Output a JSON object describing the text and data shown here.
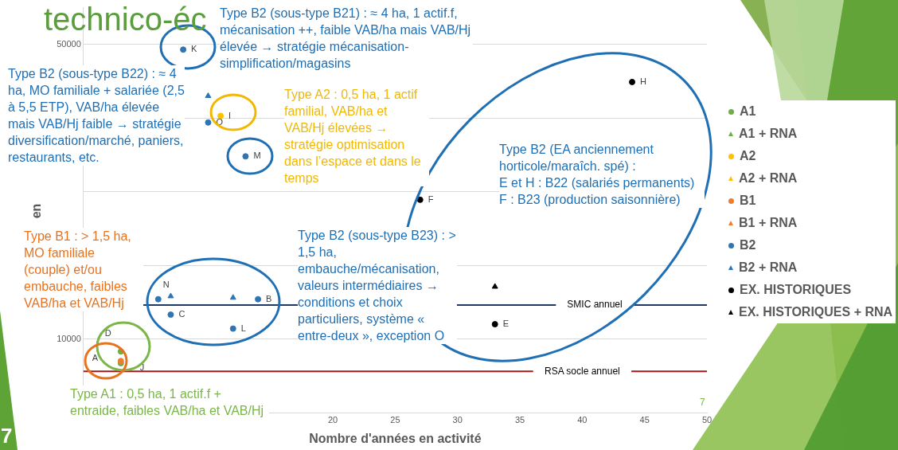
{
  "chart_data": {
    "type": "scatter",
    "title": "technico-éc",
    "xlabel": "Nombre d'années en activité",
    "ylabel": "en",
    "xlim": [
      0,
      50
    ],
    "xticks": [
      20,
      25,
      30,
      35,
      40,
      45,
      50
    ],
    "ylim": [
      0,
      55000
    ],
    "yticks": [
      10000,
      {
        "value": 20000,
        "label": null
      },
      {
        "value": 30000,
        "label": null
      },
      {
        "value": 40000,
        "label": null
      },
      50000
    ],
    "grid": "y",
    "legend": "right",
    "marker": "circle",
    "series": [
      {
        "name": "A1",
        "color": "#70ad47",
        "x": [
          3,
          3
        ],
        "values": [
          8300,
          6700
        ]
      },
      {
        "name": "A1 + RNA",
        "color": "#70ad47",
        "marker": "triangle"
      },
      {
        "name": "A2",
        "color": "#ffc000",
        "x": [
          11
        ],
        "values": [
          40300
        ]
      },
      {
        "name": "A2 + RNA",
        "color": "#ffc000",
        "marker": "triangle"
      },
      {
        "name": "B1",
        "color": "#ed7d31",
        "x": [
          3
        ],
        "values": [
          7000
        ]
      },
      {
        "name": "B1 + RNA",
        "color": "#ed7d31",
        "marker": "triangle"
      },
      {
        "name": "B2",
        "color": "#2e75b6",
        "x": [
          8,
          10,
          13,
          6,
          7,
          14,
          12
        ],
        "values": [
          49300,
          39400,
          34800,
          15400,
          13300,
          15400,
          11400
        ]
      },
      {
        "name": "B2 + RNA",
        "color": "#2e75b6",
        "marker": "triangle",
        "x": [
          10,
          7,
          12
        ],
        "values": [
          43000,
          15800,
          15600
        ]
      },
      {
        "name": "EX. HISTORIQUES",
        "color": "#000000",
        "x": [
          27,
          44,
          33
        ],
        "values": [
          28900,
          44900,
          12000
        ]
      },
      {
        "name": "EX. HISTORIQUES + RNA",
        "color": "#000000",
        "marker": "triangle",
        "x": [
          33
        ],
        "values": [
          17100
        ]
      }
    ],
    "ref_lines": [
      {
        "axis": "y",
        "value": 14600,
        "label": "SMIC annuel",
        "color": "#1f3864"
      },
      {
        "axis": "y",
        "value": 5600,
        "label": "RSA socle annuel",
        "color": "#9e1b1b"
      }
    ],
    "annotations": [
      "Type B2 (sous-type B21) : ≈ 4 ha, 1 actif.f, mécanisation ++, faible VAB/ha mais VAB/Hj élevée →  stratégie mécanisation-simplification/magasins",
      "Type B2 (sous-type B22) : ≈ 4 ha, MO familiale + salariée (2,5 à 5,5 ETP), VAB/ha élevée mais VAB/Hj faible → stratégie diversification/marché, paniers, restaurants, etc.",
      "Type A2 : 0,5 ha, 1 actif familial, VAB/ha et VAB/Hj élevées → stratégie optimisation dans l’espace et dans le temps",
      "Type B2 (EA anciennement horticole/maraîch.  spé) :\nE et H : B22 (salariés permanents)\nF : B23 (production saisonnière)",
      "Type B1 : > 1,5 ha, MO familiale (couple) et/ou embauche, faibles VAB/ha et VAB/Hj",
      "Type B2 (sous-type B23) : > 1,5 ha, embauche/mécanisation, valeurs intermédiaires → conditions et choix particuliers, système « entre-deux », exception O",
      "Type A1 : 0,5 ha, 1 actif.f + entraide, faibles VAB/ha et VAB/Hj",
      "7",
      "7",
      {
        "text": "K",
        "x": 8,
        "y": 49300
      },
      {
        "text": "O",
        "x": 10,
        "y": 39400
      },
      {
        "text": "I",
        "x": 11,
        "y": 40300
      },
      {
        "text": "M",
        "x": 13,
        "y": 34800
      },
      {
        "text": "N",
        "x": 6,
        "y": 15400
      },
      {
        "text": "C",
        "x": 7,
        "y": 13300
      },
      {
        "text": "B",
        "x": 14,
        "y": 15400
      },
      {
        "text": "L",
        "x": 12,
        "y": 11400
      },
      {
        "text": "D",
        "x": 3,
        "y": 8300
      },
      {
        "text": "A",
        "x": 3,
        "y": 7000
      },
      {
        "text": "J",
        "x": 3,
        "y": 6700
      },
      {
        "text": "F",
        "x": 27,
        "y": 28900
      },
      {
        "text": "H",
        "x": 44,
        "y": 44900
      },
      {
        "text": "E",
        "x": 33,
        "y": 12000
      }
    ]
  }
}
